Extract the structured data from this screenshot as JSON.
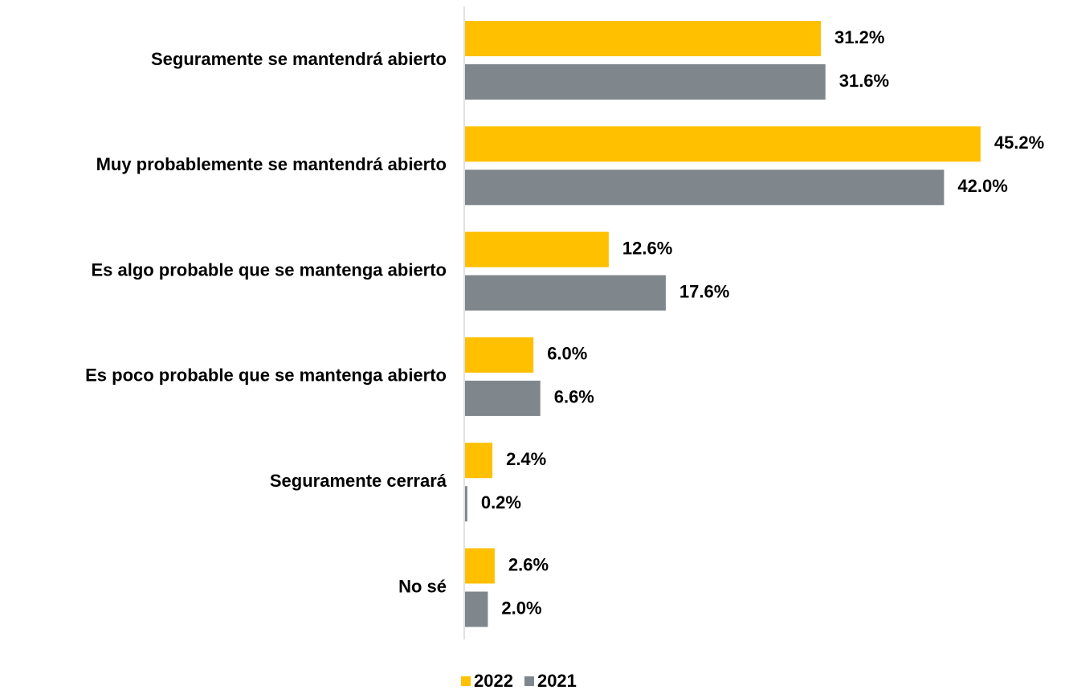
{
  "chart_data": {
    "type": "bar",
    "orientation": "horizontal",
    "categories": [
      "Seguramente se mantendrá abierto",
      "Muy probablemente se mantendrá abierto",
      "Es algo probable que se mantenga abierto",
      "Es poco probable que se mantenga abierto",
      "Seguramente cerrará",
      "No sé"
    ],
    "series": [
      {
        "name": "2022",
        "color": "#ffc000",
        "values": [
          31.2,
          45.2,
          12.6,
          6.0,
          2.4,
          2.6
        ],
        "value_labels": [
          "31.2%",
          "45.2%",
          "12.6%",
          "6.0%",
          "2.4%",
          "2.6%"
        ]
      },
      {
        "name": "2021",
        "color": "#7f878c",
        "values": [
          31.6,
          42.0,
          17.6,
          6.6,
          0.2,
          2.0
        ],
        "value_labels": [
          "31.6%",
          "42.0%",
          "17.6%",
          "6.6%",
          "0.2%",
          "2.0%"
        ]
      }
    ],
    "xlim": [
      0,
      50
    ],
    "legend": "bottom"
  }
}
